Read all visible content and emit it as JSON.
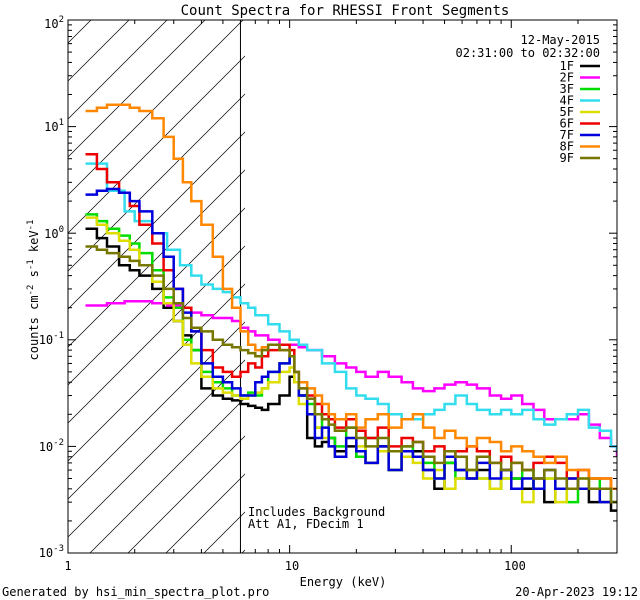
{
  "chart_data": {
    "type": "line",
    "title": "Count Spectra for RHESSI Front Segments",
    "xlabel": "Energy (keV)",
    "ylabel": "counts cm⁻² s⁻¹ keV⁻¹",
    "ylabel_parts": {
      "base": "counts cm",
      "e1": "-2",
      "mid": " s",
      "e2": "-1",
      "mid2": " keV",
      "e3": "-1"
    },
    "x_scale": "log",
    "y_scale": "log",
    "xlim": [
      1,
      300
    ],
    "ylim": [
      0.001,
      100
    ],
    "x_tick_labels": [
      "1",
      "10",
      "100"
    ],
    "y_tick_labels": [
      {
        "base": "10",
        "exp": "-3"
      },
      {
        "base": "10",
        "exp": "-2"
      },
      {
        "base": "10",
        "exp": "-1"
      },
      {
        "base": "10",
        "exp": "0"
      },
      {
        "base": "10",
        "exp": "1"
      },
      {
        "base": "10",
        "exp": "2"
      }
    ],
    "date": "12-May-2015",
    "time_range": "02:31:00 to 02:32:00",
    "annotation_lines": [
      "Includes Background",
      "Att A1, FDecim 1"
    ],
    "excluded_region": {
      "x_from": 1,
      "x_to": 6
    },
    "series": [
      {
        "name": "1F",
        "color": "#000000",
        "x": [
          1.2,
          1.35,
          1.5,
          1.7,
          1.9,
          2.1,
          2.4,
          2.7,
          3.0,
          3.3,
          3.6,
          4.0,
          4.5,
          5.0,
          5.5,
          6.0,
          6.5,
          7.0,
          7.5,
          8.0,
          9.0,
          10.0,
          10.5,
          11.0,
          12.0,
          13.0,
          14.0,
          15.0,
          16.0,
          18.0,
          20.0,
          22.0,
          25.0,
          28.0,
          32.0,
          36.0,
          40.0,
          45.0,
          50.0,
          56.0,
          63.0,
          70.0,
          80.0,
          90.0,
          100.0,
          112.0,
          126.0,
          141.0,
          158.0,
          178.0,
          200.0,
          224.0,
          251.0,
          282.0,
          300.0
        ],
        "y": [
          1.1,
          0.9,
          0.75,
          0.5,
          0.45,
          0.4,
          0.3,
          0.2,
          0.15,
          0.11,
          0.08,
          0.035,
          0.03,
          0.028,
          0.027,
          0.025,
          0.024,
          0.023,
          0.022,
          0.025,
          0.03,
          0.045,
          0.04,
          0.03,
          0.012,
          0.01,
          0.011,
          0.012,
          0.009,
          0.01,
          0.008,
          0.007,
          0.01,
          0.006,
          0.008,
          0.009,
          0.006,
          0.004,
          0.007,
          0.006,
          0.005,
          0.006,
          0.004,
          0.006,
          0.005,
          0.004,
          0.005,
          0.003,
          0.004,
          0.004,
          0.004,
          0.003,
          0.003,
          0.0025,
          0.0025
        ]
      },
      {
        "name": "2F",
        "color": "#ff00ff",
        "x": [
          1.2,
          1.5,
          1.8,
          2.0,
          2.4,
          2.8,
          3.2,
          3.6,
          4.0,
          4.5,
          5.0,
          5.5,
          6.0,
          6.5,
          7.0,
          8.0,
          9.0,
          10.0,
          11.0,
          12.0,
          14.0,
          16.0,
          18.0,
          20.0,
          22.0,
          25.0,
          28.0,
          32.0,
          36.0,
          40.0,
          45.0,
          50.0,
          56.0,
          63.0,
          70.0,
          80.0,
          90.0,
          100.0,
          112.0,
          126.0,
          141.0,
          158.0,
          178.0,
          200.0,
          224.0,
          251.0,
          282.0,
          300.0
        ],
        "y": [
          0.21,
          0.22,
          0.23,
          0.23,
          0.22,
          0.21,
          0.2,
          0.18,
          0.17,
          0.16,
          0.16,
          0.15,
          0.13,
          0.12,
          0.11,
          0.1,
          0.09,
          0.09,
          0.085,
          0.08,
          0.07,
          0.06,
          0.055,
          0.05,
          0.045,
          0.05,
          0.045,
          0.04,
          0.035,
          0.033,
          0.035,
          0.038,
          0.04,
          0.038,
          0.035,
          0.03,
          0.028,
          0.03,
          0.025,
          0.022,
          0.018,
          0.018,
          0.018,
          0.02,
          0.016,
          0.012,
          0.01,
          0.008
        ]
      },
      {
        "name": "3F",
        "color": "#00dd00",
        "x": [
          1.2,
          1.35,
          1.5,
          1.7,
          1.9,
          2.1,
          2.4,
          2.7,
          3.0,
          3.3,
          3.6,
          4.0,
          4.5,
          5.0,
          5.5,
          6.0,
          6.5,
          7.0,
          7.5,
          8.0,
          9.0,
          10.0,
          10.5,
          11.0,
          12.0,
          13.0,
          14.0,
          15.0,
          16.0,
          18.0,
          20.0,
          22.0,
          25.0,
          28.0,
          32.0,
          36.0,
          40.0,
          45.0,
          50.0,
          56.0,
          63.0,
          70.0,
          80.0,
          90.0,
          100.0,
          112.0,
          126.0,
          141.0,
          158.0,
          178.0,
          200.0,
          224.0,
          251.0,
          282.0,
          300.0
        ],
        "y": [
          1.5,
          1.3,
          1.1,
          0.95,
          0.8,
          0.65,
          0.45,
          0.25,
          0.2,
          0.1,
          0.08,
          0.05,
          0.04,
          0.035,
          0.03,
          0.03,
          0.032,
          0.03,
          0.035,
          0.05,
          0.06,
          0.07,
          0.05,
          0.03,
          0.025,
          0.015,
          0.02,
          0.012,
          0.01,
          0.015,
          0.008,
          0.012,
          0.009,
          0.006,
          0.01,
          0.008,
          0.007,
          0.005,
          0.007,
          0.005,
          0.006,
          0.005,
          0.004,
          0.005,
          0.005,
          0.006,
          0.004,
          0.005,
          0.004,
          0.003,
          0.004,
          0.005,
          0.004,
          0.003,
          0.003
        ]
      },
      {
        "name": "4F",
        "color": "#33ddee",
        "x": [
          1.2,
          1.5,
          1.8,
          2.0,
          2.4,
          2.8,
          3.2,
          3.6,
          4.0,
          4.5,
          5.0,
          5.5,
          6.0,
          6.5,
          7.0,
          8.0,
          9.0,
          10.0,
          11.0,
          12.0,
          14.0,
          16.0,
          18.0,
          20.0,
          22.0,
          25.0,
          28.0,
          32.0,
          36.0,
          40.0,
          45.0,
          50.0,
          56.0,
          63.0,
          70.0,
          80.0,
          90.0,
          100.0,
          112.0,
          126.0,
          141.0,
          158.0,
          178.0,
          200.0,
          224.0,
          251.0,
          282.0,
          300.0
        ],
        "y": [
          4.5,
          2.5,
          1.6,
          1.3,
          1.0,
          0.7,
          0.5,
          0.4,
          0.33,
          0.3,
          0.28,
          0.25,
          0.22,
          0.2,
          0.17,
          0.14,
          0.12,
          0.1,
          0.09,
          0.08,
          0.06,
          0.05,
          0.035,
          0.03,
          0.028,
          0.025,
          0.02,
          0.018,
          0.018,
          0.02,
          0.022,
          0.025,
          0.03,
          0.025,
          0.022,
          0.02,
          0.022,
          0.02,
          0.022,
          0.018,
          0.016,
          0.018,
          0.02,
          0.022,
          0.015,
          0.014,
          0.01,
          0.009
        ]
      },
      {
        "name": "5F",
        "color": "#dddd00",
        "x": [
          1.2,
          1.35,
          1.5,
          1.7,
          1.9,
          2.1,
          2.4,
          2.7,
          3.0,
          3.3,
          3.6,
          4.0,
          4.5,
          5.0,
          5.5,
          6.0,
          6.5,
          7.0,
          7.5,
          8.0,
          9.0,
          10.0,
          10.5,
          11.0,
          12.0,
          13.0,
          14.0,
          15.0,
          16.0,
          18.0,
          20.0,
          22.0,
          25.0,
          28.0,
          32.0,
          36.0,
          40.0,
          45.0,
          50.0,
          56.0,
          63.0,
          70.0,
          80.0,
          90.0,
          100.0,
          112.0,
          126.0,
          141.0,
          158.0,
          178.0,
          200.0,
          224.0,
          251.0,
          282.0,
          300.0
        ],
        "y": [
          1.4,
          1.2,
          1.0,
          0.85,
          0.7,
          0.5,
          0.35,
          0.22,
          0.15,
          0.09,
          0.06,
          0.045,
          0.035,
          0.032,
          0.03,
          0.028,
          0.03,
          0.032,
          0.035,
          0.04,
          0.05,
          0.055,
          0.04,
          0.025,
          0.02,
          0.015,
          0.012,
          0.01,
          0.008,
          0.012,
          0.01,
          0.007,
          0.009,
          0.006,
          0.008,
          0.007,
          0.005,
          0.006,
          0.004,
          0.005,
          0.006,
          0.005,
          0.004,
          0.005,
          0.004,
          0.003,
          0.004,
          0.005,
          0.003,
          0.004,
          0.005,
          0.004,
          0.003,
          0.003,
          0.003
        ]
      },
      {
        "name": "6F",
        "color": "#ee0000",
        "x": [
          1.2,
          1.35,
          1.5,
          1.7,
          1.9,
          2.1,
          2.4,
          2.7,
          3.0,
          3.3,
          3.6,
          4.0,
          4.5,
          5.0,
          5.5,
          6.0,
          6.5,
          7.0,
          7.5,
          8.0,
          9.0,
          10.0,
          10.5,
          11.0,
          12.0,
          13.0,
          14.0,
          15.0,
          16.0,
          18.0,
          20.0,
          22.0,
          25.0,
          28.0,
          32.0,
          36.0,
          40.0,
          45.0,
          50.0,
          56.0,
          63.0,
          70.0,
          80.0,
          90.0,
          100.0,
          112.0,
          126.0,
          141.0,
          158.0,
          178.0,
          200.0,
          224.0,
          251.0,
          282.0,
          300.0
        ],
        "y": [
          5.5,
          4.0,
          3.0,
          2.4,
          1.8,
          1.2,
          0.8,
          0.45,
          0.3,
          0.2,
          0.12,
          0.08,
          0.055,
          0.05,
          0.045,
          0.05,
          0.06,
          0.055,
          0.07,
          0.08,
          0.09,
          0.08,
          0.05,
          0.035,
          0.03,
          0.025,
          0.02,
          0.018,
          0.015,
          0.018,
          0.014,
          0.012,
          0.015,
          0.01,
          0.012,
          0.011,
          0.009,
          0.01,
          0.008,
          0.009,
          0.01,
          0.009,
          0.007,
          0.008,
          0.007,
          0.006,
          0.007,
          0.008,
          0.007,
          0.005,
          0.006,
          0.005,
          0.005,
          0.004,
          0.004
        ]
      },
      {
        "name": "7F",
        "color": "#0000dd",
        "x": [
          1.2,
          1.35,
          1.5,
          1.7,
          1.9,
          2.1,
          2.4,
          2.7,
          3.0,
          3.3,
          3.6,
          4.0,
          4.5,
          5.0,
          5.5,
          6.0,
          6.5,
          7.0,
          7.5,
          8.0,
          9.0,
          10.0,
          10.5,
          11.0,
          12.0,
          13.0,
          14.0,
          15.0,
          16.0,
          18.0,
          20.0,
          22.0,
          25.0,
          28.0,
          32.0,
          36.0,
          40.0,
          45.0,
          50.0,
          56.0,
          63.0,
          70.0,
          80.0,
          90.0,
          100.0,
          112.0,
          126.0,
          141.0,
          158.0,
          178.0,
          200.0,
          224.0,
          251.0,
          282.0,
          300.0
        ],
        "y": [
          2.3,
          2.5,
          2.6,
          2.4,
          2.0,
          1.6,
          1.0,
          0.6,
          0.3,
          0.18,
          0.12,
          0.06,
          0.045,
          0.04,
          0.035,
          0.03,
          0.03,
          0.04,
          0.045,
          0.05,
          0.06,
          0.07,
          0.05,
          0.03,
          0.02,
          0.012,
          0.015,
          0.01,
          0.008,
          0.012,
          0.009,
          0.007,
          0.01,
          0.006,
          0.009,
          0.008,
          0.006,
          0.005,
          0.008,
          0.006,
          0.005,
          0.007,
          0.005,
          0.006,
          0.004,
          0.005,
          0.004,
          0.006,
          0.004,
          0.005,
          0.004,
          0.004,
          0.003,
          0.003,
          0.003
        ]
      },
      {
        "name": "8F",
        "color": "#ff8800",
        "x": [
          1.2,
          1.35,
          1.5,
          1.7,
          1.9,
          2.1,
          2.4,
          2.7,
          3.0,
          3.3,
          3.6,
          4.0,
          4.5,
          5.0,
          5.5,
          6.0,
          6.5,
          7.0,
          7.5,
          8.0,
          9.0,
          10.0,
          10.5,
          11.0,
          12.0,
          13.0,
          14.0,
          15.0,
          16.0,
          18.0,
          20.0,
          22.0,
          25.0,
          28.0,
          32.0,
          36.0,
          40.0,
          45.0,
          50.0,
          56.0,
          63.0,
          70.0,
          80.0,
          90.0,
          100.0,
          112.0,
          126.0,
          141.0,
          158.0,
          178.0,
          200.0,
          224.0,
          251.0,
          282.0,
          300.0
        ],
        "y": [
          14,
          15,
          16,
          16,
          15,
          14,
          12,
          8,
          5,
          3,
          2,
          1.2,
          0.6,
          0.3,
          0.2,
          0.12,
          0.09,
          0.08,
          0.085,
          0.09,
          0.08,
          0.07,
          0.05,
          0.04,
          0.035,
          0.03,
          0.025,
          0.02,
          0.018,
          0.02,
          0.015,
          0.018,
          0.02,
          0.015,
          0.018,
          0.02,
          0.015,
          0.012,
          0.014,
          0.012,
          0.01,
          0.012,
          0.011,
          0.009,
          0.01,
          0.009,
          0.008,
          0.007,
          0.008,
          0.006,
          0.006,
          0.005,
          0.005,
          0.004,
          0.004
        ]
      },
      {
        "name": "9F",
        "color": "#777700",
        "x": [
          1.2,
          1.35,
          1.5,
          1.7,
          1.9,
          2.1,
          2.4,
          2.7,
          3.0,
          3.3,
          3.6,
          4.0,
          4.5,
          5.0,
          5.5,
          6.0,
          6.5,
          7.0,
          7.5,
          8.0,
          9.0,
          10.0,
          10.5,
          11.0,
          12.0,
          13.0,
          14.0,
          15.0,
          16.0,
          18.0,
          20.0,
          22.0,
          25.0,
          28.0,
          32.0,
          36.0,
          40.0,
          45.0,
          50.0,
          56.0,
          63.0,
          70.0,
          80.0,
          90.0,
          100.0,
          112.0,
          126.0,
          141.0,
          158.0,
          178.0,
          200.0,
          224.0,
          251.0,
          282.0,
          300.0
        ],
        "y": [
          0.75,
          0.7,
          0.65,
          0.6,
          0.55,
          0.5,
          0.4,
          0.3,
          0.22,
          0.16,
          0.13,
          0.12,
          0.1,
          0.09,
          0.085,
          0.08,
          0.075,
          0.07,
          0.08,
          0.09,
          0.08,
          0.07,
          0.05,
          0.035,
          0.028,
          0.02,
          0.018,
          0.016,
          0.014,
          0.015,
          0.012,
          0.01,
          0.012,
          0.009,
          0.01,
          0.011,
          0.008,
          0.007,
          0.009,
          0.008,
          0.006,
          0.008,
          0.007,
          0.006,
          0.007,
          0.006,
          0.005,
          0.006,
          0.005,
          0.004,
          0.005,
          0.004,
          0.004,
          0.003,
          0.003
        ]
      }
    ]
  },
  "footer": {
    "left": "Generated by hsi_min_spectra_plot.pro",
    "right": "20-Apr-2023 19:12"
  }
}
